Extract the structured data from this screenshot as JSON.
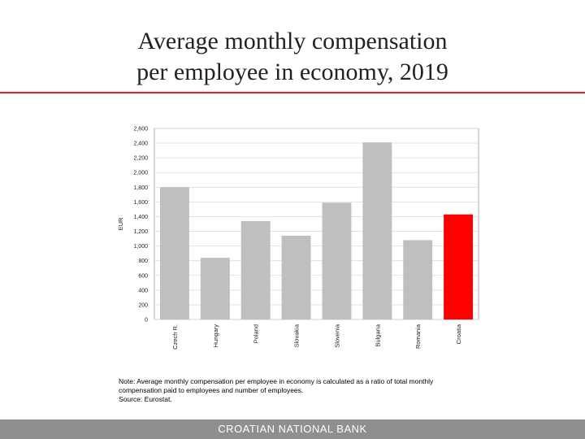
{
  "title": {
    "line1": "Average monthly compensation",
    "line2": "per employee in economy, 2019"
  },
  "colors": {
    "accent_rule": "#e32119",
    "bar_default": "#bfbfbf",
    "bar_highlight": "#ff0000",
    "footer_bg": "#8f8f8f"
  },
  "chart_data": {
    "type": "bar",
    "categories": [
      "Czech R.",
      "Hungary",
      "Poland",
      "Slovakia",
      "Slovenia",
      "Bulgaria",
      "Romania",
      "Croatia"
    ],
    "values": [
      1800,
      840,
      1340,
      1140,
      1590,
      2410,
      1080,
      1430
    ],
    "highlight": "Croatia",
    "ylabel": "EUR",
    "xlabel": "",
    "ylim": [
      0,
      2600
    ],
    "yticks": [
      "0",
      "200",
      "400",
      "600",
      "800",
      "1,000",
      "1,200",
      "1,400",
      "1,600",
      "1,800",
      "2,000",
      "2,200",
      "2,400",
      "2,600"
    ],
    "grid": true
  },
  "note": {
    "line1": "Note: Average monthly compensation per employee in economy is calculated as a ratio of total monthly",
    "line2": "compensation paid to employees and number of employees.",
    "source": "Source: Eurostat."
  },
  "footer": {
    "text": "CROATIAN NATIONAL BANK"
  }
}
